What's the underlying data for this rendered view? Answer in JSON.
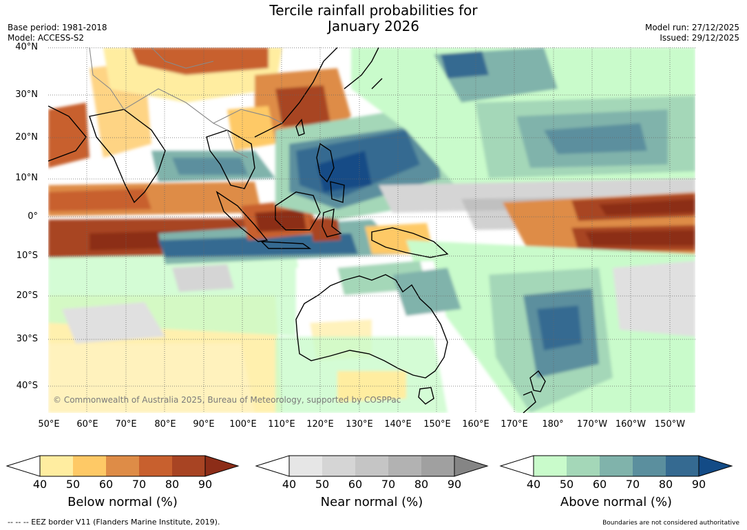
{
  "title": {
    "line1": "Tercile rainfall probabilities for",
    "line2": "January 2026"
  },
  "meta": {
    "base_period": "Base period: 1981-2018",
    "model": "Model: ACCESS-S2",
    "model_run": "Model run: 27/12/2025",
    "issued": "Issued: 29/12/2025"
  },
  "axes": {
    "lat_labels": [
      "40°N",
      "30°N",
      "20°N",
      "10°N",
      "0°",
      "10°S",
      "20°S",
      "30°S",
      "40°S"
    ],
    "lon_labels": [
      "50°E",
      "60°E",
      "70°E",
      "80°E",
      "90°E",
      "100°E",
      "110°E",
      "120°E",
      "130°E",
      "140°E",
      "150°E",
      "160°E",
      "170°E",
      "180°",
      "170°W",
      "160°W",
      "150°W"
    ]
  },
  "copyright": "© Commonwealth of Australia 2025, Bureau of Meteorology, supported by COSPPac",
  "colorbars": {
    "below": {
      "title": "Below normal (%)",
      "ticks": [
        "40",
        "50",
        "60",
        "70",
        "80",
        "90"
      ],
      "colors": [
        "#ffeda0",
        "#fec966",
        "#de8c47",
        "#c8602e",
        "#a84423",
        "#8c2d18"
      ]
    },
    "near": {
      "title": "Near normal (%)",
      "ticks": [
        "40",
        "50",
        "60",
        "70",
        "80",
        "90"
      ],
      "colors": [
        "#e6e6e6",
        "#d5d5d5",
        "#c5c5c5",
        "#b2b2b2",
        "#a0a0a0",
        "#858585"
      ]
    },
    "above": {
      "title": "Above normal (%)",
      "ticks": [
        "40",
        "50",
        "60",
        "70",
        "80",
        "90"
      ],
      "colors": [
        "#c9fbcb",
        "#a4d7b8",
        "#80b3ab",
        "#5b8f9e",
        "#356a91",
        "#134b86"
      ]
    }
  },
  "notes": {
    "eez": "--  --  -- EEZ border V11 (Flanders Marine Institute, 2019).",
    "boundaries": "Boundaries are not considered authoritative"
  }
}
